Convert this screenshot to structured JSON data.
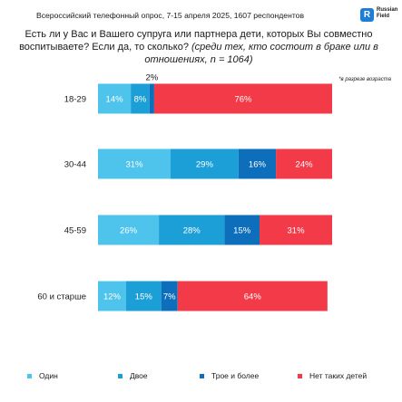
{
  "header": {
    "survey_line": "Всероссийский телефонный опрос, 7-15 апреля 2025, 1607 респондентов",
    "logo_text_line1": "Russian",
    "logo_text_line2": "Field"
  },
  "question": {
    "main": "Есть ли у Вас и Вашего супруга или партнера дети, которых Вы совместно воспитываете? Если да, то сколько?",
    "sub": "(среди тех, кто состоит в браке или в отношениях, n = 1064)"
  },
  "note": "*в разрезе возраста",
  "chart_data": {
    "type": "bar",
    "orientation": "horizontal",
    "stacked": true,
    "categories": [
      "18-29",
      "30-44",
      "45-59",
      "60 и старше"
    ],
    "series": [
      {
        "name": "Один",
        "values": [
          14,
          31,
          26,
          12
        ],
        "color": "#4ec3ec",
        "labels": [
          "14%",
          "31%",
          "26%",
          "12%"
        ]
      },
      {
        "name": "Двое",
        "values": [
          8,
          29,
          28,
          15
        ],
        "color": "#1b9fd6",
        "labels": [
          "8%",
          "29%",
          "28%",
          "15%"
        ]
      },
      {
        "name": "Трое и более",
        "values": [
          2,
          16,
          15,
          7
        ],
        "color": "#0d6fbb",
        "labels": [
          "2%",
          "16%",
          "15%",
          "7%"
        ]
      },
      {
        "name": "Нет таких детей",
        "values": [
          76,
          24,
          31,
          64
        ],
        "color": "#f23a48",
        "labels": [
          "76%",
          "24%",
          "31%",
          "64%"
        ]
      }
    ],
    "xlim": [
      0,
      100
    ],
    "legend_position": "bottom",
    "grid": false
  }
}
